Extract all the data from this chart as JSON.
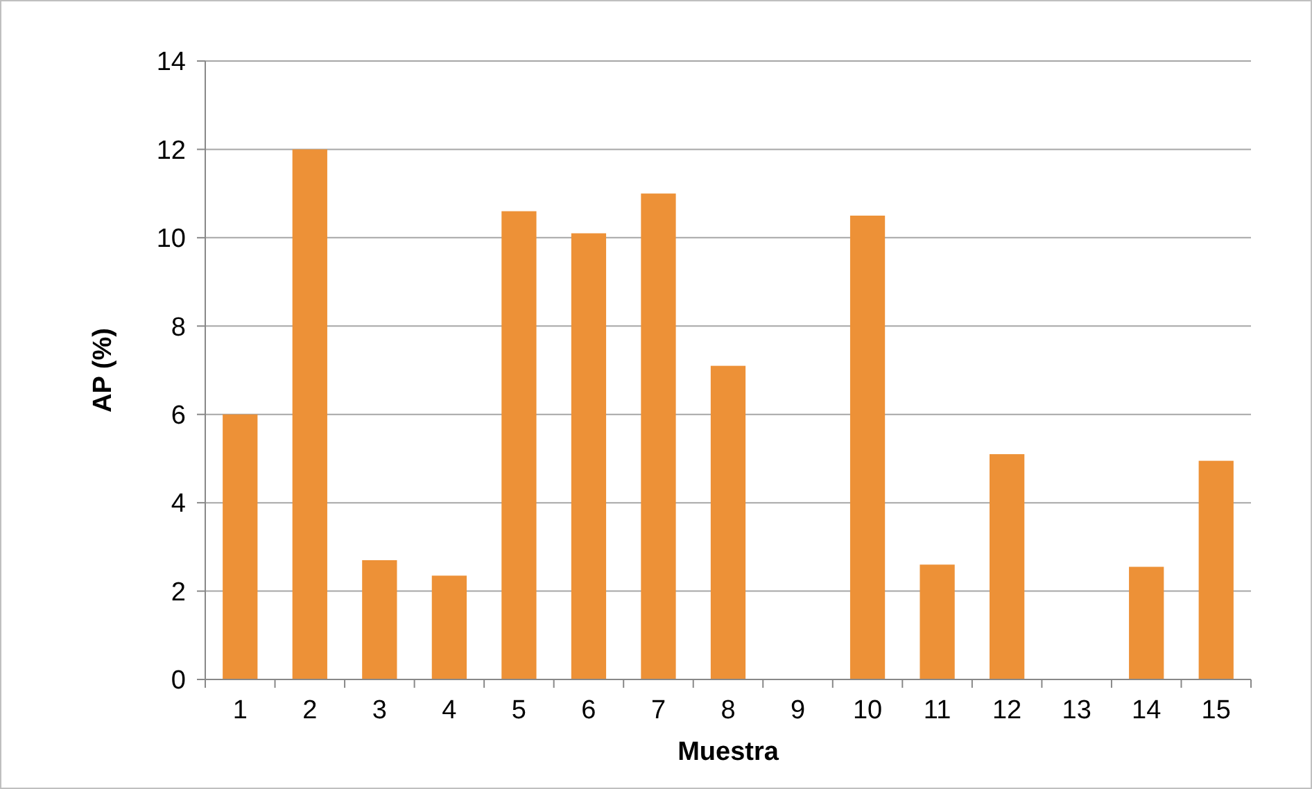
{
  "chart_data": {
    "type": "bar",
    "xlabel": "Muestra",
    "ylabel": "AP (%)",
    "categories": [
      "1",
      "2",
      "3",
      "4",
      "5",
      "6",
      "7",
      "8",
      "9",
      "10",
      "11",
      "12",
      "13",
      "14",
      "15"
    ],
    "values": [
      6.0,
      12.0,
      2.7,
      2.35,
      10.6,
      10.1,
      11.0,
      7.1,
      0,
      10.5,
      2.6,
      5.1,
      0,
      2.55,
      4.95
    ],
    "color": "#ed9137",
    "ylim": [
      0,
      14
    ],
    "yticks": [
      0,
      2,
      4,
      6,
      8,
      10,
      12,
      14
    ],
    "grid": "y"
  }
}
